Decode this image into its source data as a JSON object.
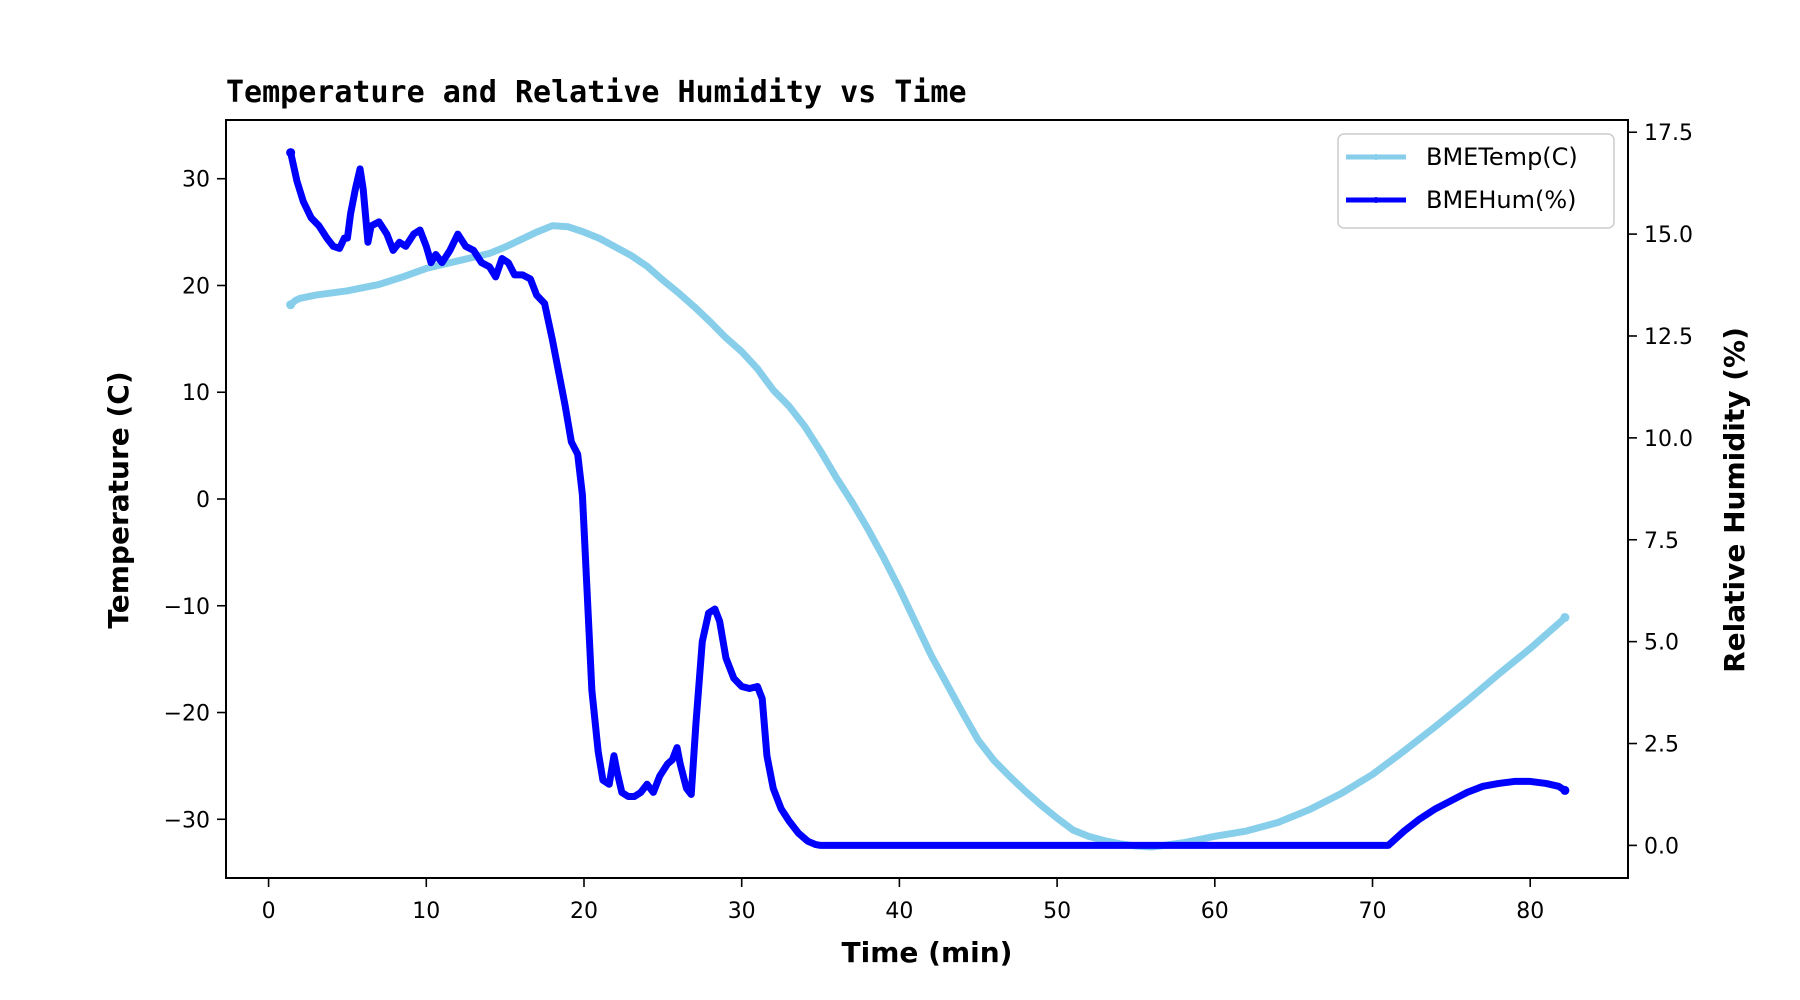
{
  "chart_data": {
    "type": "line",
    "title": "Temperature and Relative Humidity vs Time",
    "xlabel": "Time (min)",
    "ylabel_left": "Temperature (C)",
    "ylabel_right": "Relative Humidity (%)",
    "xlim": [
      -2.7,
      86.2
    ],
    "ylim_left": [
      -35.5,
      35.5
    ],
    "ylim_right": [
      -0.8,
      17.8
    ],
    "x_ticks": [
      0,
      10,
      20,
      30,
      40,
      50,
      60,
      70,
      80
    ],
    "y_left_ticks": [
      30,
      20,
      10,
      0,
      -10,
      -20,
      -30
    ],
    "y_left_tick_labels": [
      "30",
      "20",
      "10",
      "0",
      "−10",
      "−20",
      "−30"
    ],
    "y_right_ticks": [
      17.5,
      15.0,
      12.5,
      10.0,
      7.5,
      5.0,
      2.5,
      0.0
    ],
    "y_right_tick_labels": [
      "17.5",
      "15.0",
      "12.5",
      "10.0",
      "7.5",
      "5.0",
      "2.5",
      "0.0"
    ],
    "legend_position": "top-right",
    "series": [
      {
        "name": "BMETemp(C)",
        "axis": "left",
        "color": "#87CEEB",
        "points": [
          [
            1.4,
            18.2
          ],
          [
            1.7,
            18.6
          ],
          [
            2,
            18.8
          ],
          [
            3,
            19.1
          ],
          [
            5,
            19.5
          ],
          [
            7,
            20.1
          ],
          [
            8.5,
            20.8
          ],
          [
            10,
            21.6
          ],
          [
            12,
            22.3
          ],
          [
            14,
            23
          ],
          [
            15,
            23.6
          ],
          [
            16,
            24.3
          ],
          [
            17,
            25
          ],
          [
            18,
            25.6
          ],
          [
            19,
            25.5
          ],
          [
            20,
            25
          ],
          [
            21,
            24.4
          ],
          [
            22,
            23.6
          ],
          [
            23,
            22.8
          ],
          [
            24,
            21.8
          ],
          [
            25,
            20.5
          ],
          [
            26,
            19.3
          ],
          [
            27,
            18
          ],
          [
            28,
            16.6
          ],
          [
            29,
            15.1
          ],
          [
            30,
            13.8
          ],
          [
            31,
            12.2
          ],
          [
            32,
            10.2
          ],
          [
            33,
            8.7
          ],
          [
            34,
            6.8
          ],
          [
            35,
            4.5
          ],
          [
            36,
            2
          ],
          [
            37,
            -0.3
          ],
          [
            38,
            -2.8
          ],
          [
            39,
            -5.5
          ],
          [
            40,
            -8.4
          ],
          [
            41,
            -11.5
          ],
          [
            42,
            -14.6
          ],
          [
            43,
            -17.3
          ],
          [
            44,
            -20
          ],
          [
            45,
            -22.6
          ],
          [
            46,
            -24.5
          ],
          [
            47,
            -26
          ],
          [
            48,
            -27.4
          ],
          [
            49,
            -28.7
          ],
          [
            50,
            -29.9
          ],
          [
            51,
            -31
          ],
          [
            52,
            -31.6
          ],
          [
            53,
            -32
          ],
          [
            54,
            -32.3
          ],
          [
            55,
            -32.5
          ],
          [
            56,
            -32.6
          ],
          [
            57,
            -32.4
          ],
          [
            58,
            -32.2
          ],
          [
            59,
            -31.9
          ],
          [
            60,
            -31.6
          ],
          [
            62,
            -31.1
          ],
          [
            64,
            -30.3
          ],
          [
            66,
            -29.1
          ],
          [
            68,
            -27.6
          ],
          [
            70,
            -25.8
          ],
          [
            72,
            -23.6
          ],
          [
            74,
            -21.3
          ],
          [
            76,
            -18.9
          ],
          [
            78,
            -16.4
          ],
          [
            80,
            -14
          ],
          [
            82,
            -11.4
          ],
          [
            82.2,
            -11.1
          ]
        ]
      },
      {
        "name": "BMEHum(%)",
        "axis": "right",
        "color": "#0000FF",
        "points": [
          [
            1.4,
            17
          ],
          [
            1.8,
            16.3
          ],
          [
            2.2,
            15.8
          ],
          [
            2.7,
            15.4
          ],
          [
            3.2,
            15.2
          ],
          [
            3.7,
            14.9
          ],
          [
            4.1,
            14.7
          ],
          [
            4.5,
            14.65
          ],
          [
            4.8,
            14.9
          ],
          [
            5,
            14.9
          ],
          [
            5.2,
            15.5
          ],
          [
            5.5,
            16.1
          ],
          [
            5.8,
            16.6
          ],
          [
            6,
            16.1
          ],
          [
            6.3,
            14.8
          ],
          [
            6.5,
            15.2
          ],
          [
            7,
            15.3
          ],
          [
            7.5,
            15
          ],
          [
            7.9,
            14.6
          ],
          [
            8.3,
            14.8
          ],
          [
            8.7,
            14.7
          ],
          [
            9.2,
            15
          ],
          [
            9.6,
            15.1
          ],
          [
            10,
            14.7
          ],
          [
            10.3,
            14.3
          ],
          [
            10.6,
            14.5
          ],
          [
            11,
            14.3
          ],
          [
            11.5,
            14.6
          ],
          [
            12,
            15
          ],
          [
            12.5,
            14.7
          ],
          [
            13,
            14.6
          ],
          [
            13.5,
            14.3
          ],
          [
            14,
            14.2
          ],
          [
            14.4,
            13.95
          ],
          [
            14.8,
            14.4
          ],
          [
            15.2,
            14.3
          ],
          [
            15.6,
            14
          ],
          [
            16.1,
            14
          ],
          [
            16.6,
            13.9
          ],
          [
            17,
            13.5
          ],
          [
            17.5,
            13.3
          ],
          [
            18,
            12.4
          ],
          [
            18.4,
            11.6
          ],
          [
            18.8,
            10.8
          ],
          [
            19.2,
            9.9
          ],
          [
            19.6,
            9.6
          ],
          [
            19.9,
            8.6
          ],
          [
            20.2,
            6.2
          ],
          [
            20.5,
            3.8
          ],
          [
            20.9,
            2.3
          ],
          [
            21.2,
            1.6
          ],
          [
            21.6,
            1.5
          ],
          [
            21.9,
            2.2
          ],
          [
            22.1,
            1.8
          ],
          [
            22.4,
            1.3
          ],
          [
            22.8,
            1.2
          ],
          [
            23.2,
            1.2
          ],
          [
            23.6,
            1.3
          ],
          [
            24,
            1.5
          ],
          [
            24.4,
            1.3
          ],
          [
            24.8,
            1.7
          ],
          [
            25.3,
            2
          ],
          [
            25.6,
            2.1
          ],
          [
            25.9,
            2.4
          ],
          [
            26.1,
            2
          ],
          [
            26.5,
            1.4
          ],
          [
            26.8,
            1.25
          ],
          [
            27.1,
            3
          ],
          [
            27.5,
            5
          ],
          [
            27.9,
            5.7
          ],
          [
            28.3,
            5.8
          ],
          [
            28.6,
            5.5
          ],
          [
            29,
            4.6
          ],
          [
            29.5,
            4.1
          ],
          [
            30,
            3.9
          ],
          [
            30.5,
            3.85
          ],
          [
            31,
            3.9
          ],
          [
            31.3,
            3.6
          ],
          [
            31.6,
            2.2
          ],
          [
            32,
            1.4
          ],
          [
            32.5,
            0.9
          ],
          [
            33,
            0.6
          ],
          [
            33.6,
            0.3
          ],
          [
            34.2,
            0.1
          ],
          [
            34.7,
            0.02
          ],
          [
            35,
            0
          ],
          [
            71,
            0
          ],
          [
            72,
            0.35
          ],
          [
            73,
            0.65
          ],
          [
            74,
            0.9
          ],
          [
            75,
            1.1
          ],
          [
            76,
            1.3
          ],
          [
            77,
            1.45
          ],
          [
            78,
            1.52
          ],
          [
            79,
            1.57
          ],
          [
            80,
            1.57
          ],
          [
            81,
            1.52
          ],
          [
            81.8,
            1.45
          ],
          [
            82.2,
            1.35
          ]
        ]
      }
    ]
  }
}
